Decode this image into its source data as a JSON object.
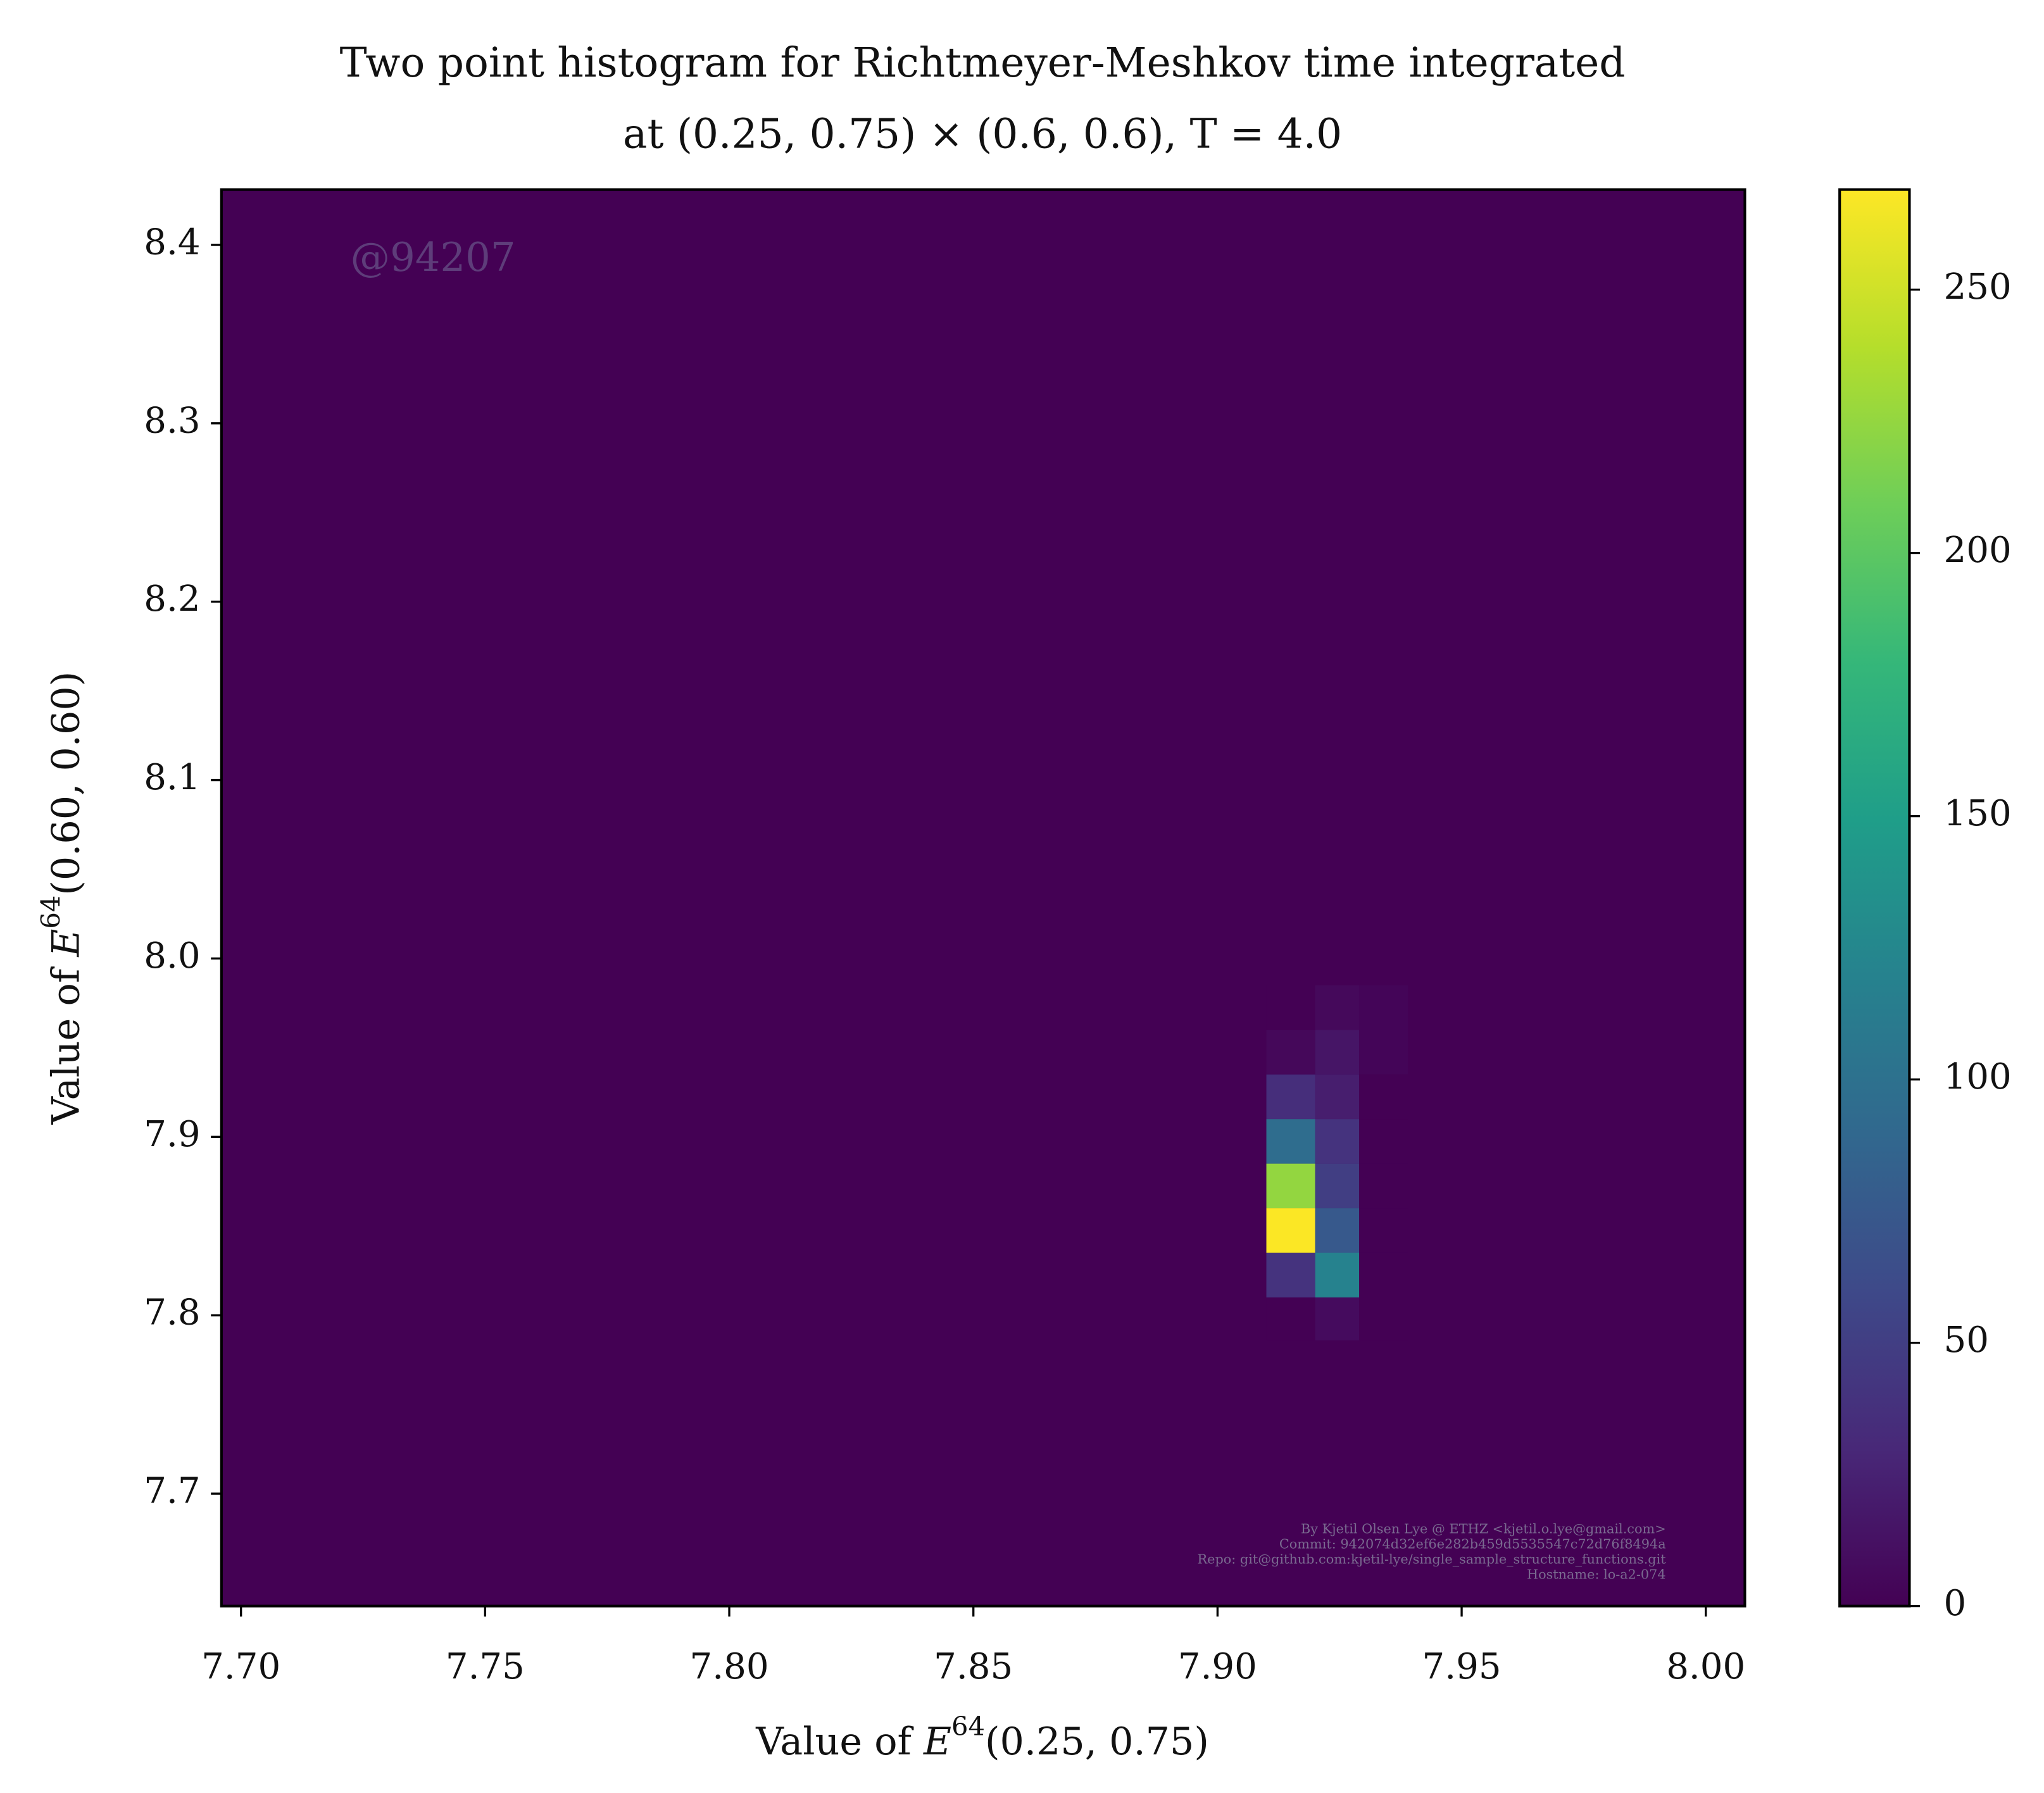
{
  "chart_data": {
    "type": "heatmap",
    "title": [
      "Two point histogram for Richtmeyer-Meshkov time integrated",
      "at (0.25, 0.75) × (0.6, 0.6), T = 4.0"
    ],
    "xlabel": [
      "Value of ",
      "E",
      "64",
      "(0.25, 0.75)"
    ],
    "ylabel": [
      "Value of ",
      "E",
      "64",
      "(0.60, 0.60)"
    ],
    "watermark": "@94207",
    "footer": [
      "By Kjetil Olsen Lye @ ETHZ <kjetil.o.lye@gmail.com>",
      "Commit: 942074d32ef6e282b459d5535547c72d76f8494a",
      "Repo: git@github.com:kjetil-lye/single_sample_structure_functions.git",
      "Hostname: lo-a2-074"
    ],
    "colormap": "viridis",
    "xlim": [
      7.696,
      8.008
    ],
    "ylim": [
      7.637,
      8.431
    ],
    "clim": [
      0,
      269
    ],
    "xticks": [
      {
        "value": 7.7,
        "label": "7.70"
      },
      {
        "value": 7.75,
        "label": "7.75"
      },
      {
        "value": 7.8,
        "label": "7.80"
      },
      {
        "value": 7.85,
        "label": "7.85"
      },
      {
        "value": 7.9,
        "label": "7.90"
      },
      {
        "value": 7.95,
        "label": "7.95"
      },
      {
        "value": 8.0,
        "label": "8.00"
      }
    ],
    "yticks": [
      7.7,
      7.8,
      7.9,
      {
        "value": 8.0,
        "label": "8.0"
      },
      8.1,
      8.2,
      8.3,
      8.4
    ],
    "cticks": [
      0,
      50,
      100,
      150,
      200,
      250
    ],
    "x_edges": [
      7.91,
      7.92,
      7.929,
      7.939
    ],
    "y_edges": [
      7.786,
      7.81,
      7.835,
      7.86,
      7.885,
      7.91,
      7.935,
      7.96,
      7.985
    ],
    "z": [
      [
        0,
        8,
        0
      ],
      [
        40,
        120,
        0
      ],
      [
        268,
        75,
        0
      ],
      [
        225,
        50,
        0
      ],
      [
        95,
        40,
        0
      ],
      [
        35,
        22,
        0
      ],
      [
        5,
        15,
        3
      ],
      [
        0,
        6,
        3
      ]
    ]
  }
}
